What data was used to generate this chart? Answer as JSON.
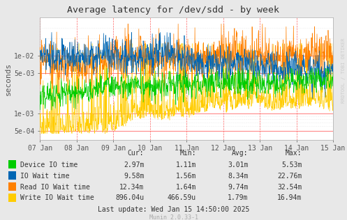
{
  "title": "Average latency for /dev/sdd - by week",
  "ylabel": "seconds",
  "watermark": "RRDTOOL / TOBI OETIKER",
  "munin_version": "Munin 2.0.33-1",
  "last_update": "Last update: Wed Jan 15 14:50:00 2025",
  "x_tick_labels": [
    "07 Jan",
    "08 Jan",
    "09 Jan",
    "10 Jan",
    "11 Jan",
    "12 Jan",
    "13 Jan",
    "14 Jan",
    "15 Jan"
  ],
  "y_tick_labels": [
    "5e-04",
    "1e-03",
    "5e-03",
    "1e-02"
  ],
  "y_ticks": [
    0.0005,
    0.001,
    0.005,
    0.01
  ],
  "ylim_low": 0.00035,
  "ylim_high": 0.045,
  "series": [
    {
      "label": "Device IO time",
      "color": "#00cc00",
      "cur": "2.97m",
      "min": "1.11m",
      "avg": "3.01m",
      "max": "5.53m"
    },
    {
      "label": "IO Wait time",
      "color": "#0066b3",
      "cur": "9.58m",
      "min": "1.56m",
      "avg": "8.34m",
      "max": "22.76m"
    },
    {
      "label": "Read IO Wait time",
      "color": "#ff8000",
      "cur": "12.34m",
      "min": "1.64m",
      "avg": "9.74m",
      "max": "32.54m"
    },
    {
      "label": "Write IO Wait time",
      "color": "#ffcc00",
      "cur": "896.04u",
      "min": "466.59u",
      "avg": "1.79m",
      "max": "16.94m"
    }
  ],
  "outer_bg": "#e8e8e8",
  "plot_bg": "#ffffff",
  "grid_h_color": "#ff6666",
  "grid_v_color": "#ff6666",
  "grid_minor_color": "#dddddd",
  "n_points": 1000
}
